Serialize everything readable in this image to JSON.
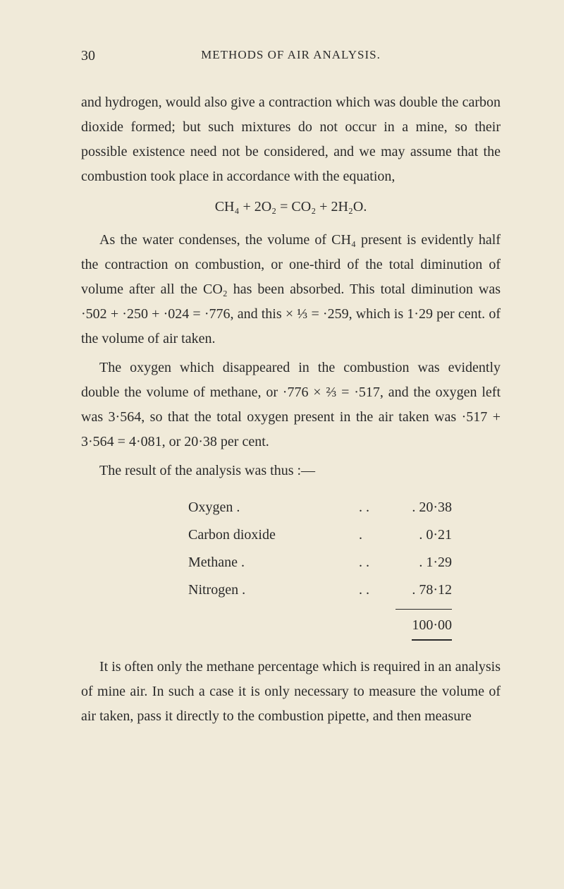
{
  "page": {
    "number": "30",
    "header": "METHODS OF AIR ANALYSIS."
  },
  "paragraphs": {
    "p1": "and hydrogen, would also give a contraction which was double the carbon dioxide formed; but such mixtures do not occur in a mine, so their possible existence need not be considered, and we may assume that the combustion took place in accordance with the equation,",
    "equation": "CH₄ + 2O₂ = CO₂ + 2H₂O.",
    "p2": "As the water condenses, the volume of CH₄ present is evidently half the contraction on combustion, or one-third of the total diminution of volume after all the CO₂ has been absorbed. This total diminution was ·502 + ·250 + ·024 = ·776, and this × ⅓ = ·259, which is 1·29 per cent. of the volume of air taken.",
    "p3": "The oxygen which disappeared in the combustion was evidently double the volume of methane, or ·776 × ⅔ = ·517, and the oxygen left was 3·564, so that the total oxygen present in the air taken was ·517 + 3·564 = 4·081, or 20·38 per cent.",
    "p4": "The result of the analysis was thus :—",
    "p5": "It is often only the methane percentage which is required in an analysis of mine air. In such a case it is only necessary to measure the volume of air taken, pass it directly to the combustion pipette, and then measure"
  },
  "results": {
    "rows": [
      {
        "label": "Oxygen .",
        "dots": ".     .",
        "value": "20·38"
      },
      {
        "label": "Carbon dioxide",
        "dots": ".",
        "value": "0·21"
      },
      {
        "label": "Methane .",
        "dots": ".     .",
        "value": "1·29"
      },
      {
        "label": "Nitrogen .",
        "dots": ".     .",
        "value": "78·12"
      }
    ],
    "total": "100·00"
  },
  "styling": {
    "background_color": "#f0ead9",
    "text_color": "#2a2a2a",
    "body_font_size": 20,
    "header_font_size": 17,
    "line_height": 1.75
  }
}
